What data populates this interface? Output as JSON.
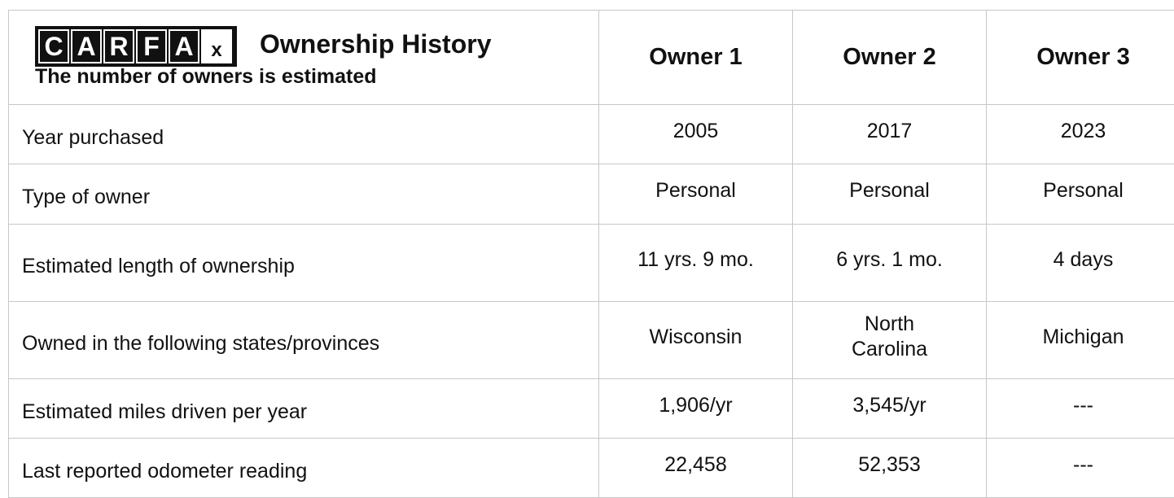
{
  "header": {
    "logo": [
      "C",
      "A",
      "R",
      "F",
      "A",
      "X"
    ],
    "title": "Ownership History",
    "subtitle": "The number of owners is estimated"
  },
  "table": {
    "columns": [
      "Owner 1",
      "Owner 2",
      "Owner 3"
    ],
    "rows": [
      {
        "label": "Year purchased",
        "values": [
          "2005",
          "2017",
          "2023"
        ]
      },
      {
        "label": "Type of owner",
        "values": [
          "Personal",
          "Personal",
          "Personal"
        ]
      },
      {
        "label": "Estimated length of ownership",
        "values": [
          "11 yrs. 9 mo.",
          "6 yrs. 1 mo.",
          "4 days"
        ]
      },
      {
        "label": "Owned in the following states/provinces",
        "values": [
          "Wisconsin",
          "North Carolina",
          "Michigan"
        ]
      },
      {
        "label": "Estimated miles driven per year",
        "values": [
          "1,906/yr",
          "3,545/yr",
          "---"
        ]
      },
      {
        "label": "Last reported odometer reading",
        "values": [
          "22,458",
          "52,353",
          "---"
        ]
      }
    ]
  }
}
